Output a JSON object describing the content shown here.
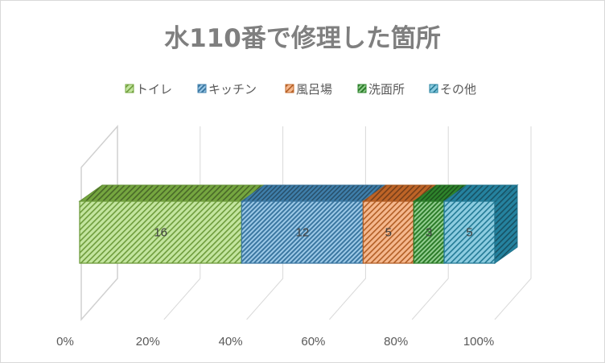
{
  "chart_data": {
    "type": "bar",
    "subtype": "100% stacked horizontal bar (3-D)",
    "title": "水110番で修理した箇所",
    "categories": [
      ""
    ],
    "series": [
      {
        "name": "トイレ",
        "values": [
          16
        ],
        "color": "#92d050",
        "pattern": "diagonal-hatch"
      },
      {
        "name": "キッチン",
        "values": [
          12
        ],
        "color": "#4f9fd6",
        "pattern": "dense-hatch"
      },
      {
        "name": "風呂場",
        "values": [
          5
        ],
        "color": "#ed7d31",
        "pattern": "diagonal-hatch"
      },
      {
        "name": "洗面所",
        "values": [
          3
        ],
        "color": "#3aa537",
        "pattern": "dense-hatch"
      },
      {
        "name": "その他",
        "values": [
          5
        ],
        "color": "#2ea3c7",
        "pattern": "diagonal-hatch"
      }
    ],
    "x_ticks": [
      "0%",
      "20%",
      "40%",
      "60%",
      "80%",
      "100%"
    ],
    "xlim": [
      0,
      100
    ],
    "legend_position": "top",
    "data_labels": true,
    "grid": true
  }
}
